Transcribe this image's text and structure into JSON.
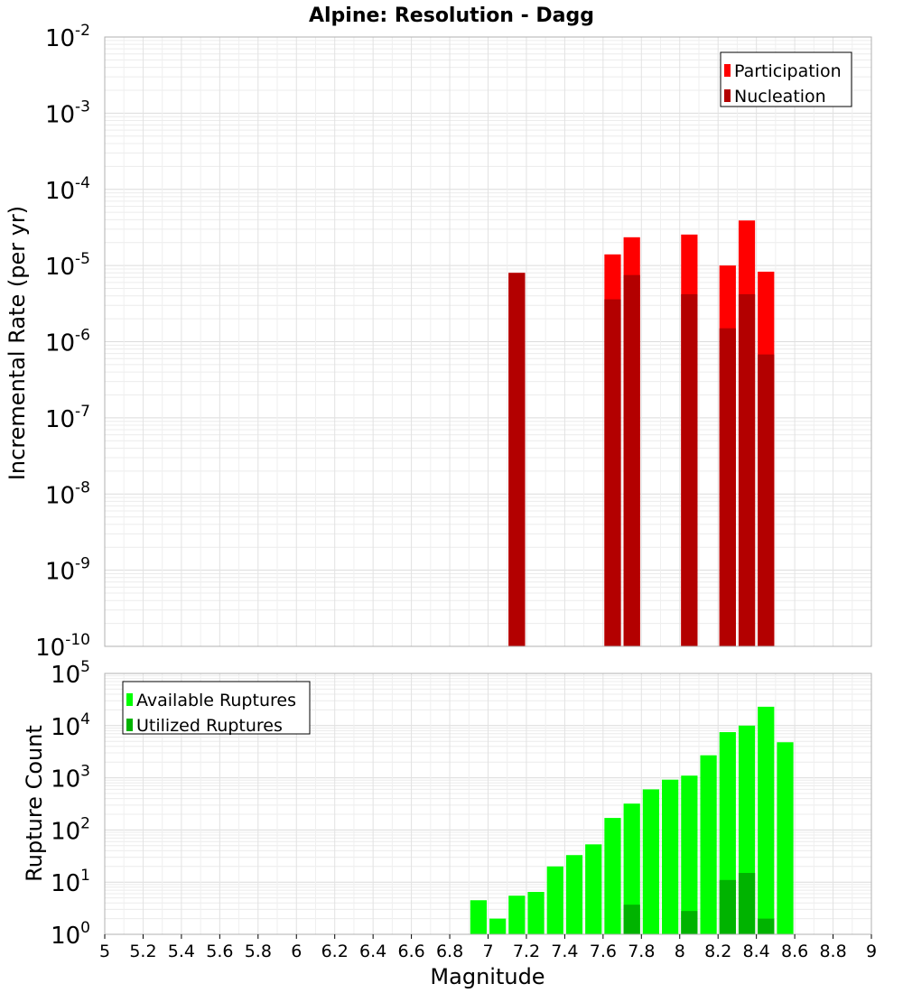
{
  "chart_data": [
    {
      "type": "bar",
      "title": "Alpine: Resolution - Dagg",
      "xlabel": "",
      "ylabel": "Incremental Rate (per yr)",
      "yscale": "log",
      "ylim_exp": [
        -10,
        -2
      ],
      "xlim": [
        5,
        9
      ],
      "grid": true,
      "legend_position": "top-right",
      "series": [
        {
          "name": "Participation",
          "color": "#ff0000",
          "points": [
            {
              "x": 7.15,
              "y": 8e-06
            },
            {
              "x": 7.65,
              "y": 1.4e-05
            },
            {
              "x": 7.75,
              "y": 2.35e-05
            },
            {
              "x": 8.05,
              "y": 2.55e-05
            },
            {
              "x": 8.25,
              "y": 1e-05
            },
            {
              "x": 8.35,
              "y": 3.9e-05
            },
            {
              "x": 8.45,
              "y": 8.3e-06
            }
          ]
        },
        {
          "name": "Nucleation",
          "color": "#b30000",
          "points": [
            {
              "x": 7.15,
              "y": 8e-06
            },
            {
              "x": 7.65,
              "y": 3.6e-06
            },
            {
              "x": 7.75,
              "y": 7.5e-06
            },
            {
              "x": 8.05,
              "y": 4.2e-06
            },
            {
              "x": 8.25,
              "y": 1.5e-06
            },
            {
              "x": 8.35,
              "y": 4.2e-06
            },
            {
              "x": 8.45,
              "y": 6.8e-07
            }
          ]
        }
      ]
    },
    {
      "type": "bar",
      "title": "",
      "xlabel": "Magnitude",
      "ylabel": "Rupture Count",
      "yscale": "log",
      "ylim_exp": [
        0,
        5
      ],
      "xlim": [
        5,
        9
      ],
      "grid": true,
      "legend_position": "top-left",
      "xticks": [
        "5",
        "5.2",
        "5.4",
        "5.6",
        "5.8",
        "6",
        "6.2",
        "6.4",
        "6.6",
        "6.8",
        "7",
        "7.2",
        "7.4",
        "7.6",
        "7.8",
        "8",
        "8.2",
        "8.4",
        "8.6",
        "8.8",
        "9"
      ],
      "series": [
        {
          "name": "Available Ruptures",
          "color": "#00ff00",
          "points": [
            {
              "x": 6.95,
              "y": 4.5
            },
            {
              "x": 7.05,
              "y": 2
            },
            {
              "x": 7.15,
              "y": 5.5
            },
            {
              "x": 7.25,
              "y": 6.5
            },
            {
              "x": 7.35,
              "y": 20
            },
            {
              "x": 7.45,
              "y": 33
            },
            {
              "x": 7.55,
              "y": 53
            },
            {
              "x": 7.65,
              "y": 170
            },
            {
              "x": 7.75,
              "y": 320
            },
            {
              "x": 7.85,
              "y": 600
            },
            {
              "x": 7.95,
              "y": 920
            },
            {
              "x": 8.05,
              "y": 1100
            },
            {
              "x": 8.15,
              "y": 2700
            },
            {
              "x": 8.25,
              "y": 7500
            },
            {
              "x": 8.35,
              "y": 10000
            },
            {
              "x": 8.45,
              "y": 23000
            },
            {
              "x": 8.55,
              "y": 4800
            }
          ]
        },
        {
          "name": "Utilized Ruptures",
          "color": "#00b300",
          "points": [
            {
              "x": 7.15,
              "y": 1
            },
            {
              "x": 7.65,
              "y": 1
            },
            {
              "x": 7.75,
              "y": 3.7
            },
            {
              "x": 8.05,
              "y": 2.8
            },
            {
              "x": 8.25,
              "y": 11
            },
            {
              "x": 8.35,
              "y": 15
            },
            {
              "x": 8.45,
              "y": 2
            }
          ]
        }
      ]
    }
  ]
}
